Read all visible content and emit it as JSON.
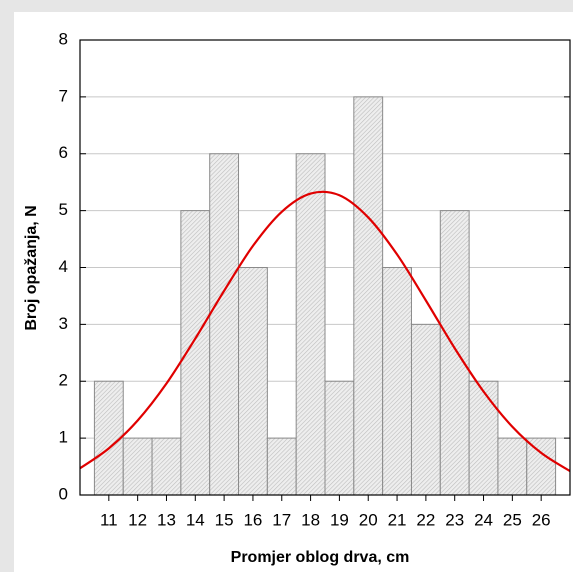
{
  "chart_data": {
    "type": "histogram",
    "xlabel": "Promjer oblog drva, cm",
    "ylabel": "Broj opažanja, N",
    "bins": [
      10.5,
      11.5,
      12.5,
      13.5,
      14.5,
      15.5,
      16.5,
      17.5,
      18.5,
      19.5,
      20.5,
      21.5,
      22.5,
      23.5,
      24.5,
      25.5,
      26.5
    ],
    "values": [
      2,
      1,
      1,
      5,
      6,
      4,
      1,
      6,
      2,
      7,
      4,
      3,
      5,
      2,
      1,
      1
    ],
    "color": "#d0d0d0",
    "xlim": [
      10,
      27
    ],
    "xticks": [
      11,
      12,
      13,
      14,
      15,
      16,
      17,
      18,
      19,
      20,
      21,
      22,
      23,
      24,
      25,
      26
    ],
    "ylim": [
      0,
      8
    ],
    "yticks": [
      0,
      1,
      2,
      3,
      4,
      5,
      6,
      7,
      8
    ],
    "grid": true,
    "fit": {
      "color": "#e00000",
      "x": [
        10,
        11,
        12,
        13,
        14,
        15,
        16,
        17,
        18,
        19,
        20,
        21,
        22,
        23,
        24,
        25,
        26,
        27
      ],
      "values": [
        0.47,
        0.82,
        1.31,
        1.96,
        2.75,
        3.59,
        4.38,
        4.98,
        5.3,
        5.27,
        4.88,
        4.23,
        3.42,
        2.58,
        1.82,
        1.2,
        0.74,
        0.42
      ]
    }
  }
}
